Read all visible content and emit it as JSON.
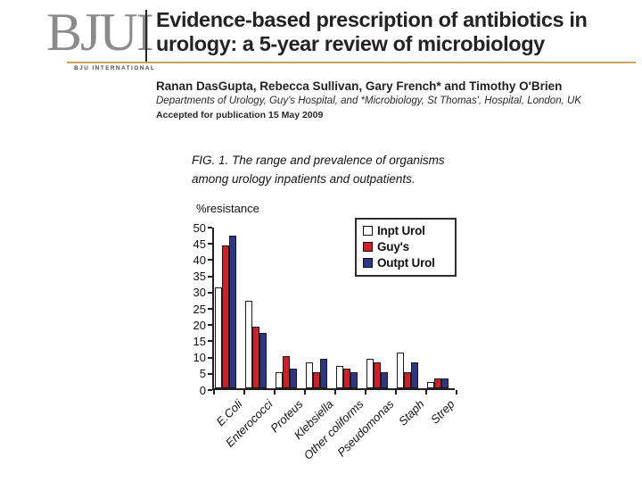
{
  "header": {
    "logo": {
      "acronym": "BJUI",
      "subtitle": "BJU INTERNATIONAL"
    },
    "title_line1": "Evidence-based prescription of antibiotics in",
    "title_line2": "urology: a 5-year review of microbiology",
    "authors": "Ranan DasGupta, Rebecca Sullivan, Gary French* and Timothy O'Brien",
    "affiliation": "Departments of Urology, Guy's Hospital, and *Microbiology, St Thomas', Hospital, London, UK",
    "accepted": "Accepted for publication 15 May 2009",
    "accent_color": "#c9a55e",
    "logo_color": "#8b8b8d",
    "text_color": "#262223"
  },
  "figure": {
    "caption_line1": "FIG. 1. The range and prevalence of organisms",
    "caption_line2": "among urology inpatients and outpatients."
  },
  "chart_data": {
    "type": "bar",
    "title": "",
    "xlabel": "",
    "ylabel": "%resistance",
    "ylim": [
      0,
      50
    ],
    "ytick_step": 5,
    "grid": false,
    "legend_position": "top-right",
    "categories": [
      "E.Coli",
      "Enterococci",
      "Proteus",
      "Klebsiella",
      "Other coliforms",
      "Pseudomonas",
      "Staph",
      "Strep"
    ],
    "series": [
      {
        "name": "Inpt Urol",
        "color": "#ffffff",
        "values": [
          31,
          27,
          5,
          8,
          7,
          9,
          11,
          2
        ]
      },
      {
        "name": "Guy's",
        "color": "#cc2128",
        "values": [
          44,
          19,
          10,
          5,
          6,
          8,
          5,
          3
        ]
      },
      {
        "name": "Outpt Urol",
        "color": "#2c3786",
        "values": [
          47,
          17,
          6,
          9,
          5,
          5,
          8,
          3
        ]
      }
    ]
  }
}
